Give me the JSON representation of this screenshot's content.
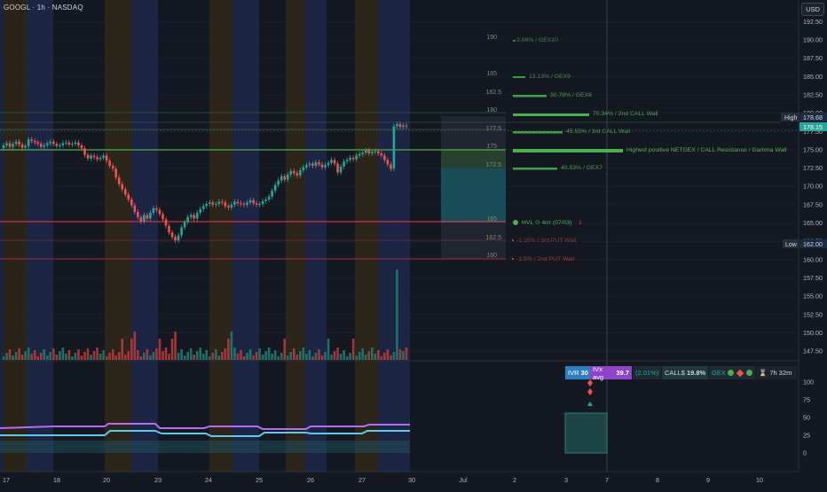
{
  "header": {
    "title": "GOOGL · 1h · NASDAQ",
    "currency_button": "USD"
  },
  "colors": {
    "bg": "#141821",
    "up": "#26a69a",
    "down": "#ef5350",
    "green_line": "#4caf50",
    "red_line": "#f23645",
    "purple": "#b36cf2",
    "cyan": "#5fc9e8"
  },
  "y_axis": {
    "ticks": [
      "192.50",
      "190.00",
      "187.50",
      "185.00",
      "182.50",
      "180.00",
      "177.50",
      "175.00",
      "172.50",
      "170.00",
      "167.50",
      "165.00",
      "162.50",
      "160.00",
      "157.50",
      "155.00",
      "152.50",
      "150.00",
      "147.50"
    ]
  },
  "lower_axis": {
    "ticks": [
      "100",
      "75",
      "50",
      "25",
      "0"
    ]
  },
  "x_axis": {
    "ticks": [
      "17",
      "18",
      "20",
      "23",
      "24",
      "25",
      "26",
      "27",
      "30",
      "Jul",
      "2",
      "3",
      "7",
      "8",
      "9",
      "10"
    ]
  },
  "price_tags": {
    "high_label": "High",
    "high_value": "178.68",
    "last_value": "178.15",
    "low_label": "Low",
    "low_value": "162.00"
  },
  "levels": {
    "strikes": [
      "190",
      "185",
      "182.5",
      "180",
      "177.5",
      "175",
      "172.5",
      "165",
      "162.5",
      "160"
    ],
    "notes": {
      "gex10": "3.88% / GEX10",
      "gex9": "13.13% / GEX9",
      "gex8": "30.78% / GEX8",
      "call2": "70.34% / 2nd CALL Wall",
      "call3": "45.55% / 3rd CALL Wall",
      "netgex": "Highest positive NETGEX / CALL Resistance / Gamma Wall",
      "gex7": "40.53% / GEX7",
      "hvl": "HVL ⊙ 4στ (07/03)",
      "hvl_tag": "1",
      "put3": "-1.15% / 3rd PUT Wall",
      "put2": "-1.5% / 2nd PUT Wall"
    }
  },
  "hud": {
    "ivr_label": "IVR",
    "ivr_value": "30",
    "ivx_label": "IVx avg",
    "ivx_value": "39.7",
    "change": "(2.01%)",
    "calls_label": "CALL$",
    "calls_value": "19.8%",
    "gex_label": "GEX",
    "timer": "7h 32m"
  }
}
